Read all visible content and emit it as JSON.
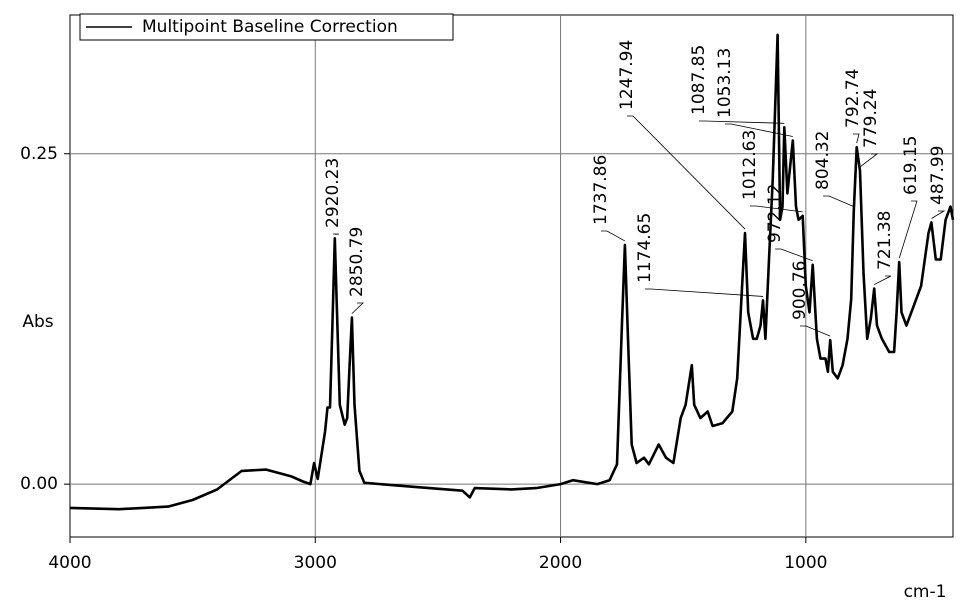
{
  "chart_data": {
    "type": "line",
    "legend": "upper left",
    "grid": true,
    "y_label": "Abs",
    "x_label": "cm-1",
    "xlim": [
      4000,
      400
    ],
    "ylim": [
      -0.04,
      0.355
    ],
    "xticks": [
      4000,
      3000,
      2000,
      1000
    ],
    "yticks": [
      {
        "value": 0,
        "label": "0.00"
      },
      {
        "value": 0.25,
        "label": "0.25"
      }
    ],
    "series": [
      {
        "name": "Multipoint Baseline Correction",
        "color": "#000000",
        "x": [
          4000,
          3800,
          3600,
          3500,
          3400,
          3300,
          3200,
          3100,
          3050,
          3020,
          3005,
          2990,
          2960,
          2950,
          2940,
          2930,
          2920.23,
          2910,
          2900,
          2880,
          2870,
          2860,
          2850.79,
          2840,
          2820,
          2800,
          2600,
          2400,
          2370,
          2350,
          2200,
          2100,
          2000,
          1950,
          1850,
          1800,
          1770,
          1750,
          1737.86,
          1725,
          1710,
          1690,
          1660,
          1640,
          1600,
          1570,
          1540,
          1510,
          1490,
          1465,
          1455,
          1430,
          1400,
          1380,
          1340,
          1300,
          1280,
          1260,
          1247.94,
          1235,
          1215,
          1200,
          1185,
          1174.65,
          1165,
          1150,
          1135,
          1115,
          1105,
          1095,
          1087.85,
          1075,
          1053.13,
          1040,
          1030,
          1012.63,
          1000,
          985,
          972.12,
          955,
          940,
          920,
          910,
          900.76,
          890,
          870,
          850,
          830,
          815,
          804.32,
          792.74,
          779.24,
          765,
          750,
          735,
          721.38,
          710,
          690,
          660,
          640,
          630,
          619.15,
          610,
          590,
          560,
          530,
          500,
          487.99,
          470,
          450,
          430,
          410,
          400
        ],
        "values": [
          -0.018,
          -0.019,
          -0.017,
          -0.012,
          -0.004,
          0.01,
          0.011,
          0.006,
          0.002,
          0.0,
          0.016,
          0.004,
          0.04,
          0.058,
          0.058,
          0.12,
          0.186,
          0.12,
          0.06,
          0.045,
          0.05,
          0.09,
          0.126,
          0.06,
          0.01,
          0.001,
          -0.002,
          -0.005,
          -0.01,
          -0.003,
          -0.004,
          -0.003,
          0.0,
          0.003,
          0.0,
          0.003,
          0.015,
          0.12,
          0.181,
          0.11,
          0.03,
          0.016,
          0.02,
          0.015,
          0.03,
          0.02,
          0.016,
          0.05,
          0.06,
          0.09,
          0.06,
          0.05,
          0.055,
          0.044,
          0.046,
          0.055,
          0.08,
          0.15,
          0.19,
          0.13,
          0.11,
          0.11,
          0.12,
          0.139,
          0.11,
          0.17,
          0.23,
          0.34,
          0.2,
          0.21,
          0.27,
          0.22,
          0.26,
          0.21,
          0.2,
          0.203,
          0.15,
          0.13,
          0.166,
          0.11,
          0.095,
          0.095,
          0.085,
          0.109,
          0.085,
          0.08,
          0.09,
          0.11,
          0.14,
          0.207,
          0.255,
          0.237,
          0.16,
          0.11,
          0.125,
          0.148,
          0.12,
          0.11,
          0.1,
          0.1,
          0.13,
          0.168,
          0.13,
          0.12,
          0.135,
          0.15,
          0.19,
          0.198,
          0.17,
          0.17,
          0.2,
          0.21,
          0.2
        ]
      }
    ],
    "peaks": [
      2920.23,
      2850.79,
      1737.86,
      1174.65,
      1247.94,
      1087.85,
      1053.13,
      1012.63,
      972.12,
      900.76,
      804.32,
      792.74,
      779.24,
      721.38,
      619.15,
      487.99
    ]
  }
}
